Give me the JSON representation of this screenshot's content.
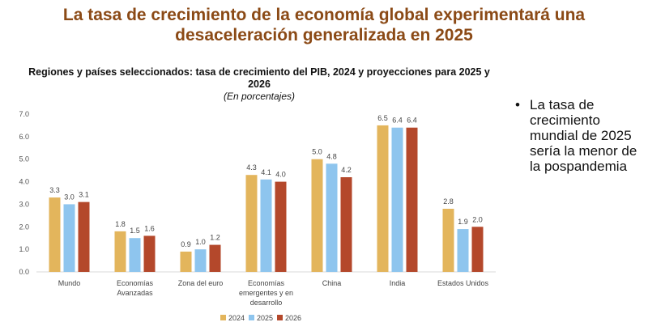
{
  "slide": {
    "title": "La tasa de crecimiento de la economía global experimentará una desaceleración generalizada en 2025",
    "bullet": "La tasa de crecimiento mundial de 2025 sería la menor de la pospandemia"
  },
  "chart_data": {
    "type": "bar",
    "title": "Regiones y países seleccionados: tasa de crecimiento del PIB, 2024 y proyecciones para 2025 y 2026",
    "subtitle": "(En porcentajes)",
    "categories": [
      [
        "Mundo"
      ],
      [
        "Economías",
        "Avanzadas"
      ],
      [
        "Zona del euro"
      ],
      [
        "Economías",
        "emergentes y en",
        "desarrollo"
      ],
      [
        "China"
      ],
      [
        "India"
      ],
      [
        "Estados Unidos"
      ]
    ],
    "series": [
      {
        "name": "2024",
        "color": "#E3B55C",
        "values": [
          3.3,
          1.8,
          0.9,
          4.3,
          5.0,
          6.5,
          2.8
        ]
      },
      {
        "name": "2025",
        "color": "#8EC5EE",
        "values": [
          3.0,
          1.5,
          1.0,
          4.1,
          4.8,
          6.4,
          1.9
        ]
      },
      {
        "name": "2026",
        "color": "#B4482B",
        "values": [
          3.1,
          1.6,
          1.2,
          4.0,
          4.2,
          6.4,
          2.0
        ]
      }
    ],
    "ylim": [
      0,
      7
    ],
    "yticks": [
      "0.0",
      "1.0",
      "2.0",
      "3.0",
      "4.0",
      "5.0",
      "6.0",
      "7.0"
    ],
    "grid": false,
    "legend": "bottom"
  }
}
